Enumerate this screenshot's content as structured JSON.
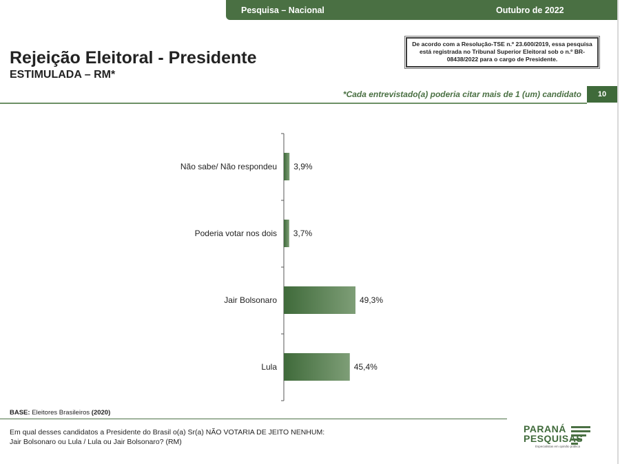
{
  "header": {
    "left": "Pesquisa – Nacional",
    "right": "Outubro de 2022"
  },
  "title": "Rejeição Eleitoral - Presidente",
  "subtitle": "ESTIMULADA – RM*",
  "legal_note": "De acordo com a Resolução-TSE n.º 23.600/2019, essa pesquisa está registrada no Tribunal Superior Eleitoral sob o n.º BR-08438/2022 para o cargo de Presidente.",
  "mention_note": "*Cada entrevistado(a) poderia citar mais de 1 (um) candidato",
  "page_number": "10",
  "chart_data": {
    "type": "bar",
    "orientation": "horizontal",
    "categories": [
      "Não sabe/ Não respondeu",
      "Poderia votar nos dois",
      "Jair Bolsonaro",
      "Lula"
    ],
    "values": [
      3.9,
      3.7,
      49.3,
      45.4
    ],
    "value_labels": [
      "3,9%",
      "3,7%",
      "49,3%",
      "45,4%"
    ],
    "unit": "%",
    "bar_color": "#4a7043",
    "grid": false
  },
  "base": {
    "label": "BASE:",
    "text": " Eleitores Brasileiros ",
    "count": "(2020)"
  },
  "question": {
    "line1": "Em qual desses candidatos a Presidente do Brasil o(a) Sr(a) NÃO VOTARIA DE JEITO NENHUM:",
    "line2": "Jair Bolsonaro ou Lula / Lula ou Jair Bolsonaro? (RM)"
  },
  "logo": {
    "line1": "PARANÁ",
    "line2": "PESQUISAS",
    "tagline": "Especialistas em opinião pública"
  }
}
